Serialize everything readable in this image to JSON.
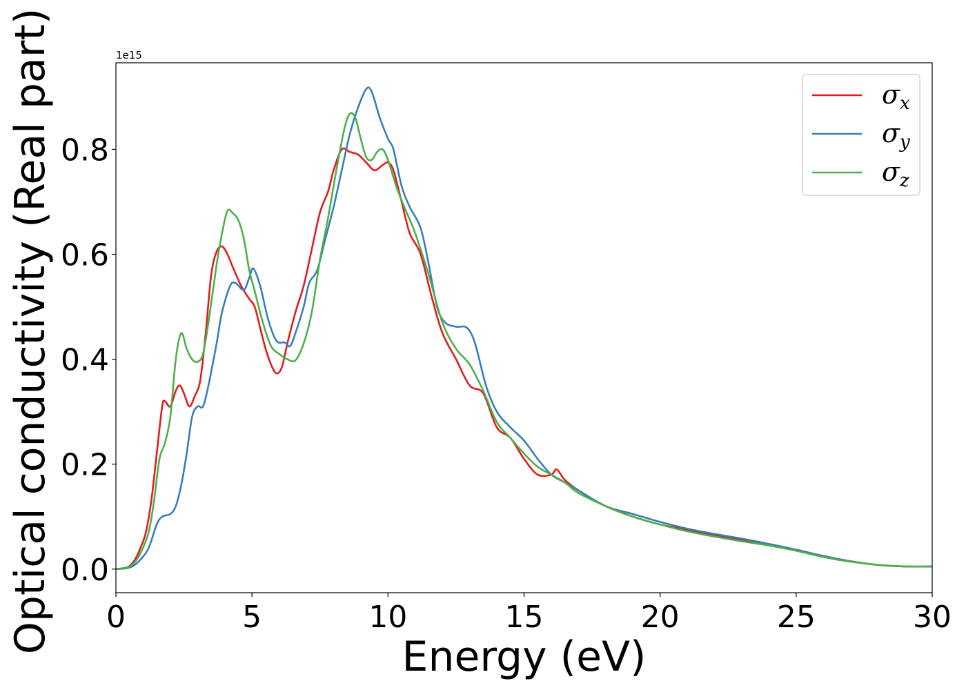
{
  "chart_data": {
    "type": "line",
    "xlabel": "Energy (eV)",
    "ylabel": "Optical conductivity (Real part)",
    "y_offset_text": "1e15",
    "xlim": [
      0,
      30
    ],
    "ylim": [
      -0.045,
      0.965
    ],
    "xticks": [
      0,
      5,
      10,
      15,
      20,
      25,
      30
    ],
    "xtick_labels": [
      "0",
      "5",
      "10",
      "15",
      "20",
      "25",
      "30"
    ],
    "yticks": [
      0.0,
      0.2,
      0.4,
      0.6,
      0.8
    ],
    "ytick_labels": [
      "0.0",
      "0.2",
      "0.4",
      "0.6",
      "0.8"
    ],
    "grid": false,
    "legend_position": "top-right",
    "series": [
      {
        "name": "σx",
        "symbol": "σ",
        "subscript": "x",
        "color": "#e41a1c",
        "points": [
          [
            0,
            0
          ],
          [
            0.3,
            0.002
          ],
          [
            0.5,
            0.006
          ],
          [
            0.7,
            0.018
          ],
          [
            0.9,
            0.04
          ],
          [
            1.1,
            0.07
          ],
          [
            1.3,
            0.13
          ],
          [
            1.5,
            0.22
          ],
          [
            1.7,
            0.31
          ],
          [
            1.8,
            0.32
          ],
          [
            2.0,
            0.31
          ],
          [
            2.2,
            0.34
          ],
          [
            2.35,
            0.35
          ],
          [
            2.5,
            0.335
          ],
          [
            2.7,
            0.31
          ],
          [
            2.9,
            0.33
          ],
          [
            3.1,
            0.36
          ],
          [
            3.3,
            0.45
          ],
          [
            3.5,
            0.56
          ],
          [
            3.7,
            0.605
          ],
          [
            3.9,
            0.615
          ],
          [
            4.1,
            0.6
          ],
          [
            4.3,
            0.575
          ],
          [
            4.6,
            0.54
          ],
          [
            4.9,
            0.515
          ],
          [
            5.1,
            0.5
          ],
          [
            5.3,
            0.46
          ],
          [
            5.5,
            0.42
          ],
          [
            5.7,
            0.39
          ],
          [
            5.9,
            0.373
          ],
          [
            6.1,
            0.385
          ],
          [
            6.3,
            0.43
          ],
          [
            6.6,
            0.49
          ],
          [
            6.9,
            0.54
          ],
          [
            7.2,
            0.61
          ],
          [
            7.5,
            0.68
          ],
          [
            7.8,
            0.72
          ],
          [
            8.0,
            0.76
          ],
          [
            8.3,
            0.8
          ],
          [
            8.6,
            0.795
          ],
          [
            8.9,
            0.79
          ],
          [
            9.2,
            0.775
          ],
          [
            9.5,
            0.76
          ],
          [
            9.8,
            0.77
          ],
          [
            10.0,
            0.775
          ],
          [
            10.2,
            0.76
          ],
          [
            10.5,
            0.7
          ],
          [
            10.8,
            0.64
          ],
          [
            11.2,
            0.6
          ],
          [
            11.6,
            0.52
          ],
          [
            12.0,
            0.45
          ],
          [
            12.5,
            0.4
          ],
          [
            13.0,
            0.35
          ],
          [
            13.5,
            0.335
          ],
          [
            14.0,
            0.27
          ],
          [
            14.5,
            0.25
          ],
          [
            15.0,
            0.21
          ],
          [
            15.5,
            0.18
          ],
          [
            16.0,
            0.18
          ],
          [
            16.2,
            0.19
          ],
          [
            16.5,
            0.17
          ],
          [
            17.0,
            0.15
          ],
          [
            18.0,
            0.12
          ],
          [
            19.0,
            0.1
          ],
          [
            20.0,
            0.085
          ],
          [
            21.0,
            0.075
          ],
          [
            22.0,
            0.065
          ],
          [
            23.0,
            0.055
          ],
          [
            24.0,
            0.047
          ],
          [
            25.0,
            0.037
          ],
          [
            26.0,
            0.025
          ],
          [
            27.0,
            0.015
          ],
          [
            28.0,
            0.008
          ],
          [
            29.0,
            0.005
          ],
          [
            30.0,
            0.005
          ]
        ]
      },
      {
        "name": "σy",
        "symbol": "σ",
        "subscript": "y",
        "color": "#377eb8",
        "points": [
          [
            0,
            0
          ],
          [
            0.3,
            0.001
          ],
          [
            0.6,
            0.005
          ],
          [
            0.9,
            0.018
          ],
          [
            1.2,
            0.04
          ],
          [
            1.5,
            0.085
          ],
          [
            1.7,
            0.1
          ],
          [
            2.0,
            0.105
          ],
          [
            2.2,
            0.12
          ],
          [
            2.4,
            0.16
          ],
          [
            2.6,
            0.22
          ],
          [
            2.8,
            0.29
          ],
          [
            3.0,
            0.31
          ],
          [
            3.2,
            0.31
          ],
          [
            3.4,
            0.35
          ],
          [
            3.7,
            0.43
          ],
          [
            3.9,
            0.49
          ],
          [
            4.2,
            0.54
          ],
          [
            4.4,
            0.545
          ],
          [
            4.7,
            0.532
          ],
          [
            4.9,
            0.555
          ],
          [
            5.05,
            0.573
          ],
          [
            5.3,
            0.54
          ],
          [
            5.6,
            0.475
          ],
          [
            5.9,
            0.435
          ],
          [
            6.2,
            0.432
          ],
          [
            6.4,
            0.425
          ],
          [
            6.6,
            0.45
          ],
          [
            6.9,
            0.5
          ],
          [
            7.1,
            0.545
          ],
          [
            7.4,
            0.57
          ],
          [
            7.7,
            0.63
          ],
          [
            8.0,
            0.69
          ],
          [
            8.3,
            0.76
          ],
          [
            8.6,
            0.83
          ],
          [
            8.9,
            0.88
          ],
          [
            9.2,
            0.915
          ],
          [
            9.4,
            0.91
          ],
          [
            9.7,
            0.86
          ],
          [
            10.0,
            0.82
          ],
          [
            10.2,
            0.8
          ],
          [
            10.5,
            0.73
          ],
          [
            10.8,
            0.69
          ],
          [
            11.2,
            0.65
          ],
          [
            11.5,
            0.58
          ],
          [
            11.8,
            0.5
          ],
          [
            12.1,
            0.47
          ],
          [
            12.5,
            0.462
          ],
          [
            12.9,
            0.46
          ],
          [
            13.2,
            0.43
          ],
          [
            13.6,
            0.35
          ],
          [
            14.0,
            0.3
          ],
          [
            14.5,
            0.27
          ],
          [
            15.0,
            0.245
          ],
          [
            15.5,
            0.21
          ],
          [
            16.0,
            0.18
          ],
          [
            16.5,
            0.165
          ],
          [
            17.0,
            0.15
          ],
          [
            18.0,
            0.12
          ],
          [
            19.0,
            0.105
          ],
          [
            20.0,
            0.09
          ],
          [
            21.0,
            0.077
          ],
          [
            22.0,
            0.067
          ],
          [
            23.0,
            0.058
          ],
          [
            24.0,
            0.048
          ],
          [
            25.0,
            0.037
          ],
          [
            26.0,
            0.025
          ],
          [
            27.0,
            0.015
          ],
          [
            28.0,
            0.008
          ],
          [
            29.0,
            0.005
          ],
          [
            30.0,
            0.005
          ]
        ]
      },
      {
        "name": "σz",
        "symbol": "σ",
        "subscript": "z",
        "color": "#4daf4a",
        "points": [
          [
            0,
            0
          ],
          [
            0.3,
            0.002
          ],
          [
            0.6,
            0.008
          ],
          [
            0.9,
            0.03
          ],
          [
            1.2,
            0.07
          ],
          [
            1.4,
            0.13
          ],
          [
            1.6,
            0.21
          ],
          [
            1.8,
            0.24
          ],
          [
            2.0,
            0.29
          ],
          [
            2.2,
            0.4
          ],
          [
            2.4,
            0.45
          ],
          [
            2.6,
            0.42
          ],
          [
            2.8,
            0.4
          ],
          [
            3.0,
            0.395
          ],
          [
            3.2,
            0.41
          ],
          [
            3.4,
            0.47
          ],
          [
            3.7,
            0.58
          ],
          [
            3.9,
            0.64
          ],
          [
            4.1,
            0.683
          ],
          [
            4.3,
            0.678
          ],
          [
            4.5,
            0.665
          ],
          [
            4.7,
            0.63
          ],
          [
            4.9,
            0.57
          ],
          [
            5.1,
            0.53
          ],
          [
            5.4,
            0.47
          ],
          [
            5.7,
            0.425
          ],
          [
            6.0,
            0.41
          ],
          [
            6.3,
            0.4
          ],
          [
            6.6,
            0.398
          ],
          [
            6.9,
            0.43
          ],
          [
            7.2,
            0.49
          ],
          [
            7.5,
            0.59
          ],
          [
            7.8,
            0.67
          ],
          [
            8.1,
            0.76
          ],
          [
            8.4,
            0.84
          ],
          [
            8.6,
            0.868
          ],
          [
            8.8,
            0.86
          ],
          [
            9.0,
            0.82
          ],
          [
            9.2,
            0.785
          ],
          [
            9.4,
            0.78
          ],
          [
            9.6,
            0.795
          ],
          [
            9.8,
            0.8
          ],
          [
            10.0,
            0.78
          ],
          [
            10.3,
            0.73
          ],
          [
            10.6,
            0.69
          ],
          [
            11.0,
            0.64
          ],
          [
            11.5,
            0.56
          ],
          [
            12.0,
            0.47
          ],
          [
            12.5,
            0.42
          ],
          [
            13.0,
            0.39
          ],
          [
            13.5,
            0.34
          ],
          [
            14.0,
            0.28
          ],
          [
            14.5,
            0.25
          ],
          [
            15.0,
            0.22
          ],
          [
            15.5,
            0.195
          ],
          [
            16.0,
            0.18
          ],
          [
            16.5,
            0.165
          ],
          [
            17.0,
            0.145
          ],
          [
            18.0,
            0.12
          ],
          [
            19.0,
            0.1
          ],
          [
            20.0,
            0.085
          ],
          [
            21.0,
            0.072
          ],
          [
            22.0,
            0.062
          ],
          [
            23.0,
            0.053
          ],
          [
            24.0,
            0.045
          ],
          [
            25.0,
            0.035
          ],
          [
            26.0,
            0.023
          ],
          [
            27.0,
            0.014
          ],
          [
            28.0,
            0.008
          ],
          [
            29.0,
            0.005
          ],
          [
            30.0,
            0.005
          ]
        ]
      }
    ]
  }
}
